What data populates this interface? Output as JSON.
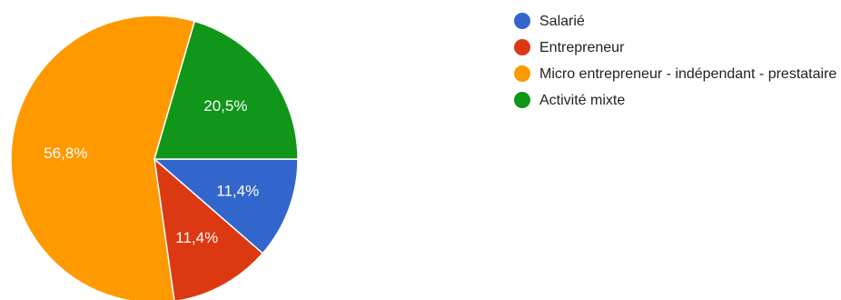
{
  "chart_data": {
    "type": "pie",
    "title": "",
    "start_angle_deg": 0,
    "direction": "clockwise",
    "legend_position": "right",
    "slices": [
      {
        "label": "Salarié",
        "value": 11.4,
        "display": "11,4%",
        "color": "#3366cc"
      },
      {
        "label": "Entrepreneur",
        "value": 11.4,
        "display": "11,4%",
        "color": "#dc3912"
      },
      {
        "label": "Micro entrepreneur - indépendant - prestataire",
        "value": 56.8,
        "display": "56,8%",
        "color": "#ff9900"
      },
      {
        "label": "Activité mixte",
        "value": 20.5,
        "display": "20,5%",
        "color": "#109618"
      }
    ]
  }
}
